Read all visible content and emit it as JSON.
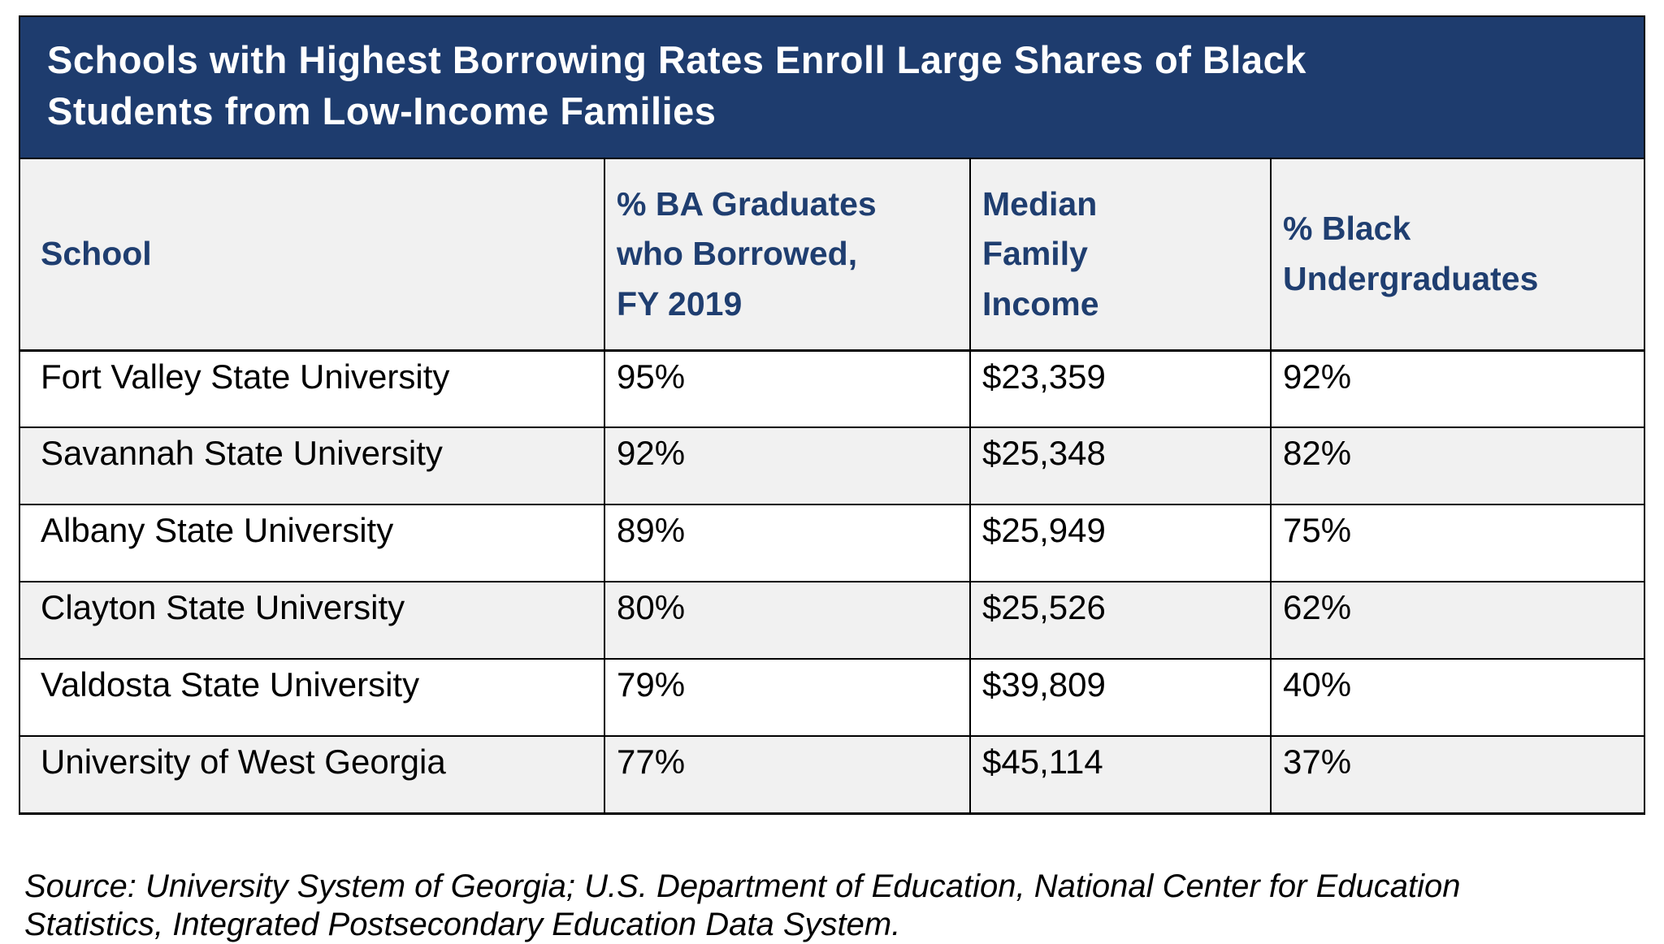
{
  "colors": {
    "title_bar_bg": "#1E3C6E",
    "title_text": "#FFFFFF",
    "header_text_navy": "#1F3E70",
    "header_bg": "#F1F1F1",
    "row_alt_bg": "#F1F1F1",
    "row_bg": "#FFFFFF",
    "border": "#000000",
    "body_text": "#000000"
  },
  "chart_data": {
    "type": "table",
    "title": "Schools with Highest Borrowing Rates Enroll Large Shares of Black\nStudents from Low-Income Families",
    "columns": [
      "School",
      "% BA Graduates\nwho Borrowed,\nFY 2019",
      "Median\nFamily\nIncome",
      "% Black\nUndergraduates"
    ],
    "rows": [
      [
        "Fort Valley State University",
        "95%",
        "$23,359",
        "92%"
      ],
      [
        "Savannah State University",
        "92%",
        "$25,348",
        "82%"
      ],
      [
        "Albany State University",
        "89%",
        "$25,949",
        "75%"
      ],
      [
        "Clayton State University",
        "80%",
        "$25,526",
        "62%"
      ],
      [
        "Valdosta State University",
        "79%",
        "$39,809",
        "40%"
      ],
      [
        "University of West Georgia",
        "77%",
        "$45,114",
        "37%"
      ]
    ],
    "source": "Source: University System of Georgia; U.S. Department of Education, National Center for Education\nStatistics, Integrated Postsecondary Education Data System.",
    "layout": {
      "legend": "none",
      "grid": "table-borders",
      "title_position": "top-banner",
      "alternating_row_shading": true
    }
  }
}
